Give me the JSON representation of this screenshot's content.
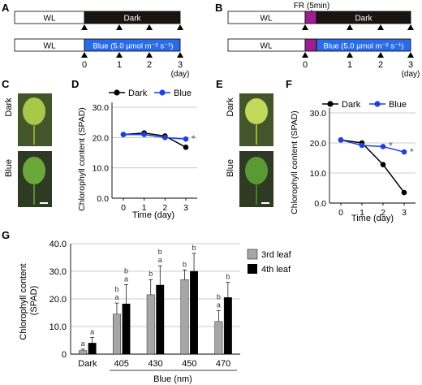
{
  "panels": {
    "A": "A",
    "B": "B",
    "C": "C",
    "D": "D",
    "E": "E",
    "F": "F",
    "G": "G"
  },
  "timelines": {
    "A": {
      "row1_start": "WL",
      "row1_end": "Dark",
      "row2_start": "WL",
      "row2_end": "Blue (5.0 µmol m⁻² s⁻¹)"
    },
    "B": {
      "fr_label": "FR (5min)",
      "row1_start": "WL",
      "row1_end": "Dark",
      "row2_start": "WL",
      "row2_end": "Blue (5.0 µmol m⁻² s⁻¹)"
    },
    "day_ticks": [
      "0",
      "1",
      "2",
      "3"
    ],
    "day_unit": "(day)"
  },
  "photo_labels": {
    "C_top": "Dark",
    "C_bottom": "Blue",
    "E_top": "Dark",
    "E_bottom": "Blue"
  },
  "colors": {
    "dark_series": "#000000",
    "blue_series": "#1f3fe0",
    "blue_bar": "#2a6be8",
    "wl_bar": "#ffffff",
    "fr_box": "#9b1f8e",
    "third_leaf": "#a6a6a6",
    "fourth_leaf": "#000000"
  },
  "chart_data": [
    {
      "id": "D",
      "type": "line",
      "x": [
        0,
        1,
        2,
        3
      ],
      "series": [
        {
          "name": "Dark",
          "values": [
            21.0,
            21.5,
            20.5,
            16.8
          ]
        },
        {
          "name": "Blue",
          "values": [
            21.0,
            21.0,
            20.0,
            19.5
          ]
        }
      ],
      "xlabel": "Time (day)",
      "ylabel": "Chlorophyll content (SPAD)",
      "ylim": [
        0,
        30
      ],
      "yticks": [
        "0.0",
        "10.0",
        "20.0",
        "30.0"
      ],
      "xticks": [
        "0",
        "1",
        "2",
        "3"
      ],
      "annotations": [
        "*"
      ],
      "grid": true,
      "legend": "top"
    },
    {
      "id": "F",
      "type": "line",
      "x": [
        0,
        1,
        2,
        3
      ],
      "series": [
        {
          "name": "Dark",
          "values": [
            21.0,
            20.0,
            12.8,
            3.5
          ]
        },
        {
          "name": "Blue",
          "values": [
            21.0,
            19.2,
            18.8,
            17.0
          ]
        }
      ],
      "xlabel": "Time (day)",
      "ylabel": "Chlorophyll content (SPAD)",
      "ylim": [
        0,
        30
      ],
      "yticks": [
        "0.0",
        "10.0",
        "20.0",
        "30.0"
      ],
      "xticks": [
        "0",
        "1",
        "2",
        "3"
      ],
      "annotations": [
        "*",
        "*"
      ],
      "grid": true,
      "legend": "top"
    },
    {
      "id": "G",
      "type": "bar",
      "categories": [
        "Dark",
        "405",
        "430",
        "450",
        "470"
      ],
      "series": [
        {
          "name": "3rd leaf",
          "values": [
            1.3,
            14.5,
            21.5,
            27.0,
            11.8
          ],
          "errors": [
            0.5,
            4.0,
            5.5,
            3.5,
            4.0
          ],
          "letters": [
            "a",
            "b\na",
            "b",
            "b",
            "b\na"
          ]
        },
        {
          "name": "4th leaf",
          "values": [
            4.0,
            18.2,
            25.0,
            30.0,
            20.5
          ],
          "errors": [
            2.0,
            7.0,
            7.0,
            6.5,
            5.5
          ],
          "letters": [
            "a",
            "b\na",
            "b\na",
            "b",
            "b"
          ]
        }
      ],
      "xlabel": "Blue (nm)",
      "ylabel": "Chlorophyll content (SPAD)",
      "ylim": [
        0,
        40
      ],
      "yticks": [
        "0",
        "10.0",
        "20.0",
        "30.0",
        "40.0"
      ],
      "grid": true,
      "legend": "right"
    }
  ]
}
